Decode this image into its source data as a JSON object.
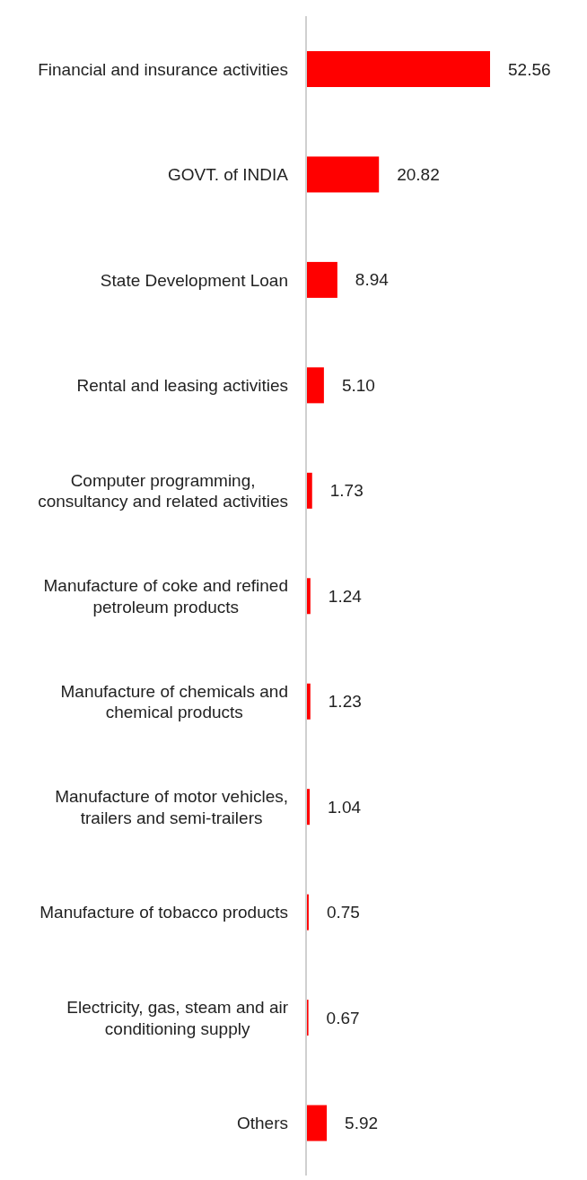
{
  "chart_data": {
    "type": "bar",
    "orientation": "horizontal",
    "categories": [
      "Financial and insurance activities",
      "GOVT. of INDIA",
      "State Development Loan",
      "Rental and leasing activities",
      "Computer programming, consultancy and related activities",
      "Manufacture of coke and refined petroleum products",
      "Manufacture of chemicals and chemical products",
      "Manufacture of motor vehicles, trailers and semi-trailers",
      "Manufacture of tobacco products",
      "Electricity, gas, steam and air conditioning supply",
      "Others"
    ],
    "values": [
      52.56,
      20.82,
      8.94,
      5.1,
      1.73,
      1.24,
      1.23,
      1.04,
      0.75,
      0.67,
      5.92
    ],
    "value_labels": [
      "52.56",
      "20.82",
      "8.94",
      "5.10",
      "1.73",
      "1.24",
      "1.23",
      "1.04",
      "0.75",
      "0.67",
      "5.92"
    ],
    "color": "#ff0000",
    "grid": false,
    "legend": false
  }
}
